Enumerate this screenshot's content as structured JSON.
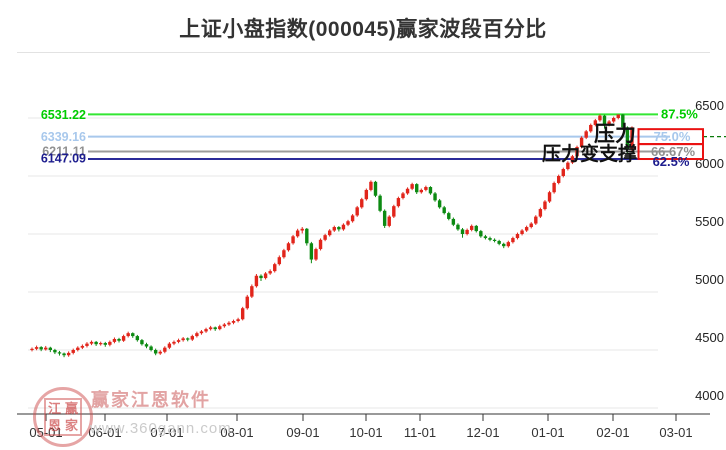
{
  "page": {
    "title": "上证小盘指数(000045)赢家波段百分比"
  },
  "watermark": {
    "brand": "赢家江恩软件",
    "url": "www.360gann.com",
    "seal": [
      "江",
      "赢",
      "恩",
      "家"
    ]
  },
  "chart_data": {
    "type": "candlestick",
    "title": "上证小盘指数(000045)赢家波段百分比",
    "x_tick_labels": [
      "05-01",
      "06-01",
      "07-01",
      "08-01",
      "09-01",
      "10-01",
      "11-01",
      "12-01",
      "01-01",
      "02-01",
      "03-01"
    ],
    "y_tick_labels": [
      "4000",
      "4500",
      "5000",
      "5500",
      "6000",
      "6500"
    ],
    "y_axis": {
      "min": 4000,
      "max": 6500,
      "grid_step": 500,
      "grid": true,
      "side": "right"
    },
    "levels": [
      {
        "price": "6531.22",
        "value": 6531.22,
        "percent": "87.5%",
        "color": "#00cc00",
        "line_color": "#33e633",
        "boxed": false
      },
      {
        "price": "6339.16",
        "value": 6339.16,
        "percent": "75.0%",
        "color": "#a8c8ec",
        "line_color": "#a8c8ec",
        "boxed": true
      },
      {
        "price": "6211.11",
        "value": 6211.11,
        "percent": "66.67%",
        "color": "#909090",
        "line_color": "#9a9a9a",
        "boxed": true
      },
      {
        "price": "6147.09",
        "value": 6147.09,
        "percent": "62.5%",
        "color": "#1c1c8e",
        "line_color": "#2a2a99",
        "boxed": false
      }
    ],
    "annotations": [
      {
        "text": "压力"
      },
      {
        "text": "压力变支撑"
      }
    ],
    "colors": {
      "up": "#e1251b",
      "down": "#0c8a12",
      "grid": "#e7e7e7",
      "axis": "#333333",
      "highlight_box": "#ea1212",
      "dashed_extension": "#0b7a0b"
    },
    "candles": [
      [
        4500,
        4522,
        4488,
        4510
      ],
      [
        4510,
        4538,
        4498,
        4525
      ],
      [
        4525,
        4533,
        4490,
        4505
      ],
      [
        4505,
        4535,
        4495,
        4520
      ],
      [
        4520,
        4528,
        4482,
        4500
      ],
      [
        4500,
        4510,
        4465,
        4480
      ],
      [
        4480,
        4492,
        4452,
        4470
      ],
      [
        4470,
        4478,
        4438,
        4455
      ],
      [
        4455,
        4488,
        4442,
        4475
      ],
      [
        4475,
        4512,
        4462,
        4500
      ],
      [
        4500,
        4532,
        4488,
        4520
      ],
      [
        4520,
        4548,
        4508,
        4535
      ],
      [
        4535,
        4568,
        4522,
        4555
      ],
      [
        4555,
        4582,
        4542,
        4570
      ],
      [
        4570,
        4578,
        4535,
        4550
      ],
      [
        4550,
        4572,
        4538,
        4560
      ],
      [
        4560,
        4570,
        4528,
        4545
      ],
      [
        4545,
        4582,
        4532,
        4570
      ],
      [
        4570,
        4608,
        4558,
        4595
      ],
      [
        4595,
        4605,
        4565,
        4580
      ],
      [
        4580,
        4632,
        4570,
        4620
      ],
      [
        4620,
        4658,
        4608,
        4645
      ],
      [
        4645,
        4652,
        4605,
        4620
      ],
      [
        4620,
        4630,
        4572,
        4585
      ],
      [
        4585,
        4595,
        4538,
        4550
      ],
      [
        4550,
        4562,
        4515,
        4530
      ],
      [
        4530,
        4540,
        4488,
        4500
      ],
      [
        4500,
        4512,
        4455,
        4470
      ],
      [
        4470,
        4498,
        4458,
        4485
      ],
      [
        4485,
        4532,
        4472,
        4520
      ],
      [
        4520,
        4568,
        4508,
        4555
      ],
      [
        4555,
        4582,
        4542,
        4570
      ],
      [
        4570,
        4598,
        4558,
        4585
      ],
      [
        4585,
        4612,
        4572,
        4600
      ],
      [
        4600,
        4608,
        4575,
        4590
      ],
      [
        4590,
        4632,
        4578,
        4620
      ],
      [
        4620,
        4658,
        4608,
        4645
      ],
      [
        4645,
        4672,
        4632,
        4660
      ],
      [
        4660,
        4692,
        4648,
        4680
      ],
      [
        4680,
        4708,
        4668,
        4695
      ],
      [
        4695,
        4702,
        4665,
        4680
      ],
      [
        4680,
        4718,
        4670,
        4705
      ],
      [
        4705,
        4732,
        4692,
        4720
      ],
      [
        4720,
        4748,
        4708,
        4735
      ],
      [
        4735,
        4762,
        4722,
        4750
      ],
      [
        4750,
        4778,
        4738,
        4765
      ],
      [
        4765,
        4872,
        4755,
        4860
      ],
      [
        4860,
        4975,
        4848,
        4960
      ],
      [
        4960,
        5065,
        4948,
        5050
      ],
      [
        5050,
        5155,
        5038,
        5140
      ],
      [
        5140,
        5152,
        5095,
        5120
      ],
      [
        5120,
        5172,
        5108,
        5160
      ],
      [
        5160,
        5195,
        5148,
        5180
      ],
      [
        5180,
        5252,
        5168,
        5240
      ],
      [
        5240,
        5315,
        5228,
        5300
      ],
      [
        5300,
        5372,
        5288,
        5360
      ],
      [
        5360,
        5432,
        5348,
        5420
      ],
      [
        5420,
        5492,
        5408,
        5480
      ],
      [
        5480,
        5545,
        5468,
        5530
      ],
      [
        5530,
        5560,
        5505,
        5545
      ],
      [
        5545,
        5552,
        5400,
        5420
      ],
      [
        5420,
        5432,
        5248,
        5280
      ],
      [
        5280,
        5382,
        5268,
        5370
      ],
      [
        5370,
        5462,
        5358,
        5450
      ],
      [
        5450,
        5502,
        5438,
        5490
      ],
      [
        5490,
        5542,
        5478,
        5530
      ],
      [
        5530,
        5572,
        5518,
        5560
      ],
      [
        5560,
        5568,
        5522,
        5540
      ],
      [
        5540,
        5592,
        5528,
        5580
      ],
      [
        5580,
        5622,
        5568,
        5610
      ],
      [
        5610,
        5672,
        5598,
        5660
      ],
      [
        5660,
        5742,
        5648,
        5730
      ],
      [
        5730,
        5812,
        5718,
        5800
      ],
      [
        5800,
        5892,
        5788,
        5880
      ],
      [
        5880,
        5962,
        5868,
        5950
      ],
      [
        5950,
        5958,
        5818,
        5830
      ],
      [
        5830,
        5842,
        5688,
        5700
      ],
      [
        5700,
        5712,
        5552,
        5570
      ],
      [
        5570,
        5662,
        5558,
        5650
      ],
      [
        5650,
        5752,
        5638,
        5740
      ],
      [
        5740,
        5822,
        5728,
        5810
      ],
      [
        5810,
        5862,
        5798,
        5850
      ],
      [
        5850,
        5902,
        5838,
        5890
      ],
      [
        5890,
        5942,
        5878,
        5930
      ],
      [
        5930,
        5938,
        5845,
        5860
      ],
      [
        5860,
        5892,
        5848,
        5880
      ],
      [
        5880,
        5917,
        5868,
        5905
      ],
      [
        5905,
        5912,
        5838,
        5850
      ],
      [
        5850,
        5862,
        5778,
        5790
      ],
      [
        5790,
        5802,
        5718,
        5730
      ],
      [
        5730,
        5742,
        5668,
        5680
      ],
      [
        5680,
        5692,
        5618,
        5630
      ],
      [
        5630,
        5642,
        5568,
        5580
      ],
      [
        5580,
        5592,
        5528,
        5540
      ],
      [
        5540,
        5552,
        5468,
        5500
      ],
      [
        5500,
        5547,
        5488,
        5535
      ],
      [
        5535,
        5582,
        5523,
        5570
      ],
      [
        5570,
        5578,
        5513,
        5525
      ],
      [
        5525,
        5535,
        5468,
        5480
      ],
      [
        5480,
        5492,
        5453,
        5465
      ],
      [
        5465,
        5477,
        5438,
        5450
      ],
      [
        5450,
        5462,
        5428,
        5440
      ],
      [
        5440,
        5450,
        5403,
        5415
      ],
      [
        5415,
        5425,
        5378,
        5395
      ],
      [
        5395,
        5442,
        5383,
        5430
      ],
      [
        5430,
        5477,
        5418,
        5465
      ],
      [
        5465,
        5512,
        5453,
        5500
      ],
      [
        5500,
        5542,
        5488,
        5530
      ],
      [
        5530,
        5572,
        5518,
        5560
      ],
      [
        5560,
        5602,
        5548,
        5590
      ],
      [
        5590,
        5662,
        5578,
        5650
      ],
      [
        5650,
        5727,
        5638,
        5715
      ],
      [
        5715,
        5792,
        5703,
        5780
      ],
      [
        5780,
        5872,
        5768,
        5860
      ],
      [
        5860,
        5952,
        5848,
        5940
      ],
      [
        5940,
        6012,
        5928,
        6000
      ],
      [
        6000,
        6072,
        5988,
        6060
      ],
      [
        6060,
        6127,
        6048,
        6115
      ],
      [
        6115,
        6182,
        6103,
        6170
      ],
      [
        6170,
        6262,
        6158,
        6250
      ],
      [
        6250,
        6342,
        6238,
        6330
      ],
      [
        6330,
        6397,
        6318,
        6385
      ],
      [
        6385,
        6452,
        6373,
        6440
      ],
      [
        6440,
        6492,
        6428,
        6480
      ],
      [
        6480,
        6531,
        6468,
        6520
      ],
      [
        6520,
        6528,
        6408,
        6440
      ],
      [
        6440,
        6482,
        6428,
        6470
      ],
      [
        6470,
        6512,
        6458,
        6500
      ],
      [
        6500,
        6531,
        6488,
        6530
      ],
      [
        6530,
        6535,
        6398,
        6420
      ],
      [
        6420,
        6428,
        6198,
        6230
      ],
      [
        6230,
        6428,
        6218,
        6420
      ]
    ]
  }
}
